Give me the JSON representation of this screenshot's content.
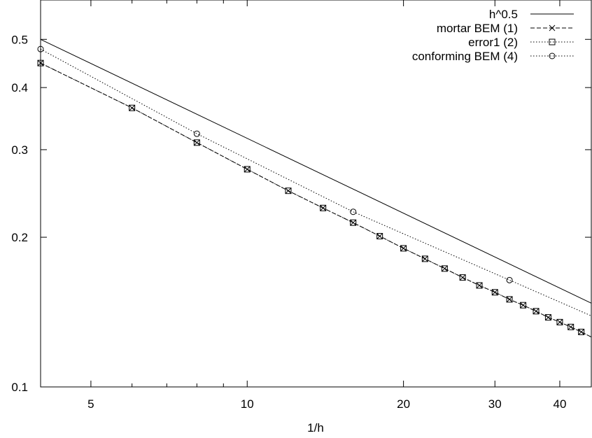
{
  "chart_data": {
    "type": "line",
    "title": "",
    "xlabel": "1/h",
    "ylabel": "",
    "xscale": "log",
    "yscale": "log",
    "xlim": [
      4,
      46
    ],
    "ylim": [
      0.1,
      0.6
    ],
    "x_ticks": [
      {
        "value": 5,
        "label": "5"
      },
      {
        "value": 10,
        "label": "10"
      },
      {
        "value": 20,
        "label": "20"
      },
      {
        "value": 30,
        "label": "30"
      },
      {
        "value": 40,
        "label": "40"
      }
    ],
    "y_ticks": [
      {
        "value": 0.1,
        "label": "0.1"
      },
      {
        "value": 0.2,
        "label": "0.2"
      },
      {
        "value": 0.3,
        "label": "0.3"
      },
      {
        "value": 0.4,
        "label": "0.4"
      },
      {
        "value": 0.5,
        "label": "0.5"
      }
    ],
    "grid": false,
    "legend_position": "top-right",
    "series": [
      {
        "name": "h^0.5",
        "style": "solid",
        "marker": "none",
        "x": [
          4,
          46
        ],
        "y": [
          0.5,
          0.1474
        ]
      },
      {
        "name": "mortar BEM (1)",
        "style": "dashed",
        "marker": "cross",
        "x": [
          4,
          6,
          8,
          10,
          12,
          14,
          16,
          18,
          20,
          22,
          24,
          26,
          28,
          30,
          32,
          34,
          36,
          38,
          40,
          42,
          44,
          46
        ],
        "y": [
          0.448,
          0.364,
          0.31,
          0.274,
          0.248,
          0.229,
          0.214,
          0.201,
          0.19,
          0.181,
          0.173,
          0.166,
          0.16,
          0.155,
          0.15,
          0.146,
          0.142,
          0.138,
          0.135,
          0.132,
          0.129,
          0.126
        ]
      },
      {
        "name": "error1 (2)",
        "style": "dotted",
        "marker": "square",
        "x": [
          4,
          6,
          8,
          10,
          12,
          14,
          16,
          18,
          20,
          22,
          24,
          26,
          28,
          30,
          32,
          34,
          36,
          38,
          40,
          42,
          44,
          46
        ],
        "y": [
          0.448,
          0.364,
          0.31,
          0.274,
          0.248,
          0.229,
          0.214,
          0.201,
          0.19,
          0.181,
          0.173,
          0.166,
          0.16,
          0.155,
          0.15,
          0.146,
          0.142,
          0.138,
          0.135,
          0.132,
          0.129,
          0.126
        ]
      },
      {
        "name": "conforming BEM (4)",
        "style": "dotted",
        "marker": "circle",
        "x": [
          4,
          8,
          16,
          32,
          46
        ],
        "y": [
          0.478,
          0.323,
          0.225,
          0.164,
          0.139
        ]
      }
    ]
  }
}
